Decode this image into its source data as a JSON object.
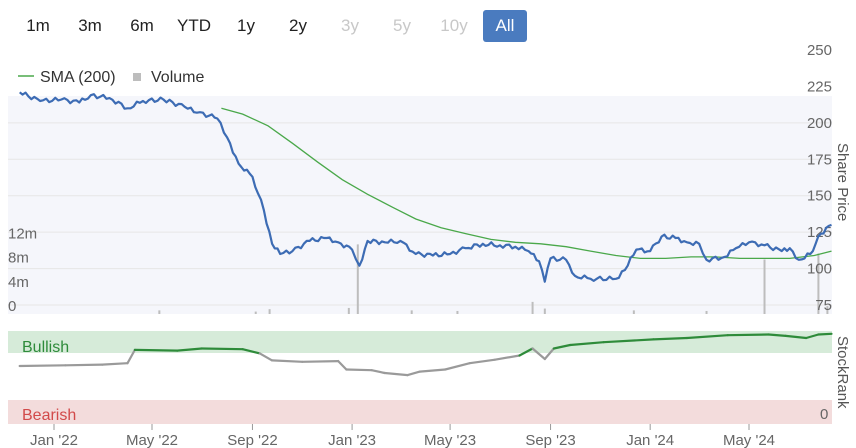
{
  "range_buttons": [
    {
      "label": "1m",
      "state": "enabled"
    },
    {
      "label": "3m",
      "state": "enabled"
    },
    {
      "label": "6m",
      "state": "enabled"
    },
    {
      "label": "YTD",
      "state": "enabled"
    },
    {
      "label": "1y",
      "state": "enabled"
    },
    {
      "label": "2y",
      "state": "enabled"
    },
    {
      "label": "3y",
      "state": "disabled"
    },
    {
      "label": "5y",
      "state": "disabled"
    },
    {
      "label": "10y",
      "state": "disabled"
    },
    {
      "label": "All",
      "state": "active"
    }
  ],
  "colors": {
    "price_line": "#3d6cb4",
    "sma_line": "#4aa84a",
    "volume_bar": "#bdbdbd",
    "plot_bg": "#f5f6fb",
    "bullish_band": "#d6ebd9",
    "bearish_band": "#f3dcdc",
    "bullish_text": "#2e8b3a",
    "bearish_text": "#d24a4a",
    "stockrank_bull": "#2e8b3a",
    "stockrank_bear": "#9a9a9a",
    "active_button": "#4a7bbf"
  },
  "chart_data": {
    "type": "line",
    "legend": [
      {
        "name": "SMA (200)",
        "marker": "line"
      },
      {
        "name": "Volume",
        "marker": "square"
      }
    ],
    "legend_position": "top-left",
    "price_axis": {
      "label": "Share Price",
      "ticks": [
        75,
        100,
        125,
        150,
        175,
        200,
        225,
        250
      ],
      "range": [
        75,
        250
      ]
    },
    "volume_axis": {
      "ticks": [
        "0",
        "4m",
        "8m",
        "12m"
      ],
      "tick_values": [
        0,
        4,
        8,
        12
      ],
      "range": [
        0,
        36
      ]
    },
    "stockrank_axis": {
      "label": "StockRank",
      "ticks": [
        "0"
      ],
      "range": [
        0,
        100
      ]
    },
    "bands": {
      "bullish": "Bullish",
      "bearish": "Bearish"
    },
    "x_ticks": [
      {
        "label": "Jan '22",
        "date": "2022-01-01"
      },
      {
        "label": "May '22",
        "date": "2022-05-01"
      },
      {
        "label": "Sep '22",
        "date": "2022-09-01"
      },
      {
        "label": "Jan '23",
        "date": "2023-01-01"
      },
      {
        "label": "May '23",
        "date": "2023-05-01"
      },
      {
        "label": "Sep '23",
        "date": "2023-09-01"
      },
      {
        "label": "Jan '24",
        "date": "2024-01-01"
      },
      {
        "label": "May '24",
        "date": "2024-05-01"
      }
    ],
    "price": [
      {
        "date": "2021-11-20",
        "value": 221
      },
      {
        "date": "2021-12-15",
        "value": 215
      },
      {
        "date": "2022-01-10",
        "value": 216
      },
      {
        "date": "2022-02-01",
        "value": 214
      },
      {
        "date": "2022-02-15",
        "value": 219
      },
      {
        "date": "2022-03-10",
        "value": 217
      },
      {
        "date": "2022-04-01",
        "value": 210
      },
      {
        "date": "2022-04-20",
        "value": 215
      },
      {
        "date": "2022-05-15",
        "value": 216
      },
      {
        "date": "2022-06-10",
        "value": 211
      },
      {
        "date": "2022-06-25",
        "value": 207
      },
      {
        "date": "2022-07-10",
        "value": 205
      },
      {
        "date": "2022-07-20",
        "value": 203
      },
      {
        "date": "2022-08-01",
        "value": 190
      },
      {
        "date": "2022-08-15",
        "value": 172
      },
      {
        "date": "2022-09-01",
        "value": 163
      },
      {
        "date": "2022-09-15",
        "value": 140
      },
      {
        "date": "2022-09-25",
        "value": 117
      },
      {
        "date": "2022-10-05",
        "value": 110
      },
      {
        "date": "2022-10-20",
        "value": 112
      },
      {
        "date": "2022-11-10",
        "value": 119
      },
      {
        "date": "2022-12-01",
        "value": 121
      },
      {
        "date": "2022-12-15",
        "value": 118
      },
      {
        "date": "2023-01-01",
        "value": 113
      },
      {
        "date": "2023-01-10",
        "value": 102
      },
      {
        "date": "2023-01-20",
        "value": 119
      },
      {
        "date": "2023-02-10",
        "value": 118
      },
      {
        "date": "2023-03-01",
        "value": 119
      },
      {
        "date": "2023-03-20",
        "value": 110
      },
      {
        "date": "2023-04-10",
        "value": 109
      },
      {
        "date": "2023-05-01",
        "value": 110
      },
      {
        "date": "2023-05-20",
        "value": 114
      },
      {
        "date": "2023-06-10",
        "value": 117
      },
      {
        "date": "2023-07-01",
        "value": 116
      },
      {
        "date": "2023-07-20",
        "value": 115
      },
      {
        "date": "2023-08-05",
        "value": 112
      },
      {
        "date": "2023-08-18",
        "value": 105
      },
      {
        "date": "2023-08-25",
        "value": 91
      },
      {
        "date": "2023-09-01",
        "value": 107
      },
      {
        "date": "2023-09-20",
        "value": 106
      },
      {
        "date": "2023-10-01",
        "value": 95
      },
      {
        "date": "2023-10-20",
        "value": 93
      },
      {
        "date": "2023-11-20",
        "value": 93
      },
      {
        "date": "2023-12-01",
        "value": 99
      },
      {
        "date": "2023-12-15",
        "value": 113
      },
      {
        "date": "2024-01-01",
        "value": 112
      },
      {
        "date": "2024-01-15",
        "value": 122
      },
      {
        "date": "2024-02-01",
        "value": 121
      },
      {
        "date": "2024-02-15",
        "value": 118
      },
      {
        "date": "2024-03-01",
        "value": 117
      },
      {
        "date": "2024-03-10",
        "value": 106
      },
      {
        "date": "2024-04-01",
        "value": 108
      },
      {
        "date": "2024-04-15",
        "value": 114
      },
      {
        "date": "2024-05-01",
        "value": 118
      },
      {
        "date": "2024-05-20",
        "value": 116
      },
      {
        "date": "2024-06-10",
        "value": 112
      },
      {
        "date": "2024-06-20",
        "value": 114
      },
      {
        "date": "2024-07-01",
        "value": 106
      },
      {
        "date": "2024-07-15",
        "value": 110
      },
      {
        "date": "2024-07-28",
        "value": 124
      },
      {
        "date": "2024-08-10",
        "value": 130
      }
    ],
    "sma_200": [
      {
        "date": "2022-07-25",
        "value": 210
      },
      {
        "date": "2022-08-20",
        "value": 206
      },
      {
        "date": "2022-09-20",
        "value": 198
      },
      {
        "date": "2022-10-20",
        "value": 186
      },
      {
        "date": "2022-11-20",
        "value": 173
      },
      {
        "date": "2022-12-20",
        "value": 161
      },
      {
        "date": "2023-01-20",
        "value": 151
      },
      {
        "date": "2023-02-20",
        "value": 142
      },
      {
        "date": "2023-03-20",
        "value": 134
      },
      {
        "date": "2023-04-20",
        "value": 128
      },
      {
        "date": "2023-05-20",
        "value": 124
      },
      {
        "date": "2023-06-20",
        "value": 120
      },
      {
        "date": "2023-07-20",
        "value": 118
      },
      {
        "date": "2023-08-20",
        "value": 117
      },
      {
        "date": "2023-09-20",
        "value": 115
      },
      {
        "date": "2023-10-20",
        "value": 112
      },
      {
        "date": "2023-11-20",
        "value": 109
      },
      {
        "date": "2023-12-20",
        "value": 107
      },
      {
        "date": "2024-01-20",
        "value": 107
      },
      {
        "date": "2024-02-20",
        "value": 108
      },
      {
        "date": "2024-03-20",
        "value": 108
      },
      {
        "date": "2024-04-20",
        "value": 107
      },
      {
        "date": "2024-05-20",
        "value": 107
      },
      {
        "date": "2024-06-20",
        "value": 107
      },
      {
        "date": "2024-07-20",
        "value": 109
      },
      {
        "date": "2024-08-10",
        "value": 112
      }
    ],
    "volume_spikes": [
      {
        "date": "2022-05-10",
        "value": 0.6
      },
      {
        "date": "2022-09-05",
        "value": 0.4
      },
      {
        "date": "2022-09-22",
        "value": 0.8
      },
      {
        "date": "2022-12-28",
        "value": 1.0
      },
      {
        "date": "2023-01-08",
        "value": 11.5
      },
      {
        "date": "2023-03-15",
        "value": 0.6
      },
      {
        "date": "2023-05-10",
        "value": 0.5
      },
      {
        "date": "2023-08-10",
        "value": 2.0
      },
      {
        "date": "2023-08-25",
        "value": 0.9
      },
      {
        "date": "2023-12-12",
        "value": 0.6
      },
      {
        "date": "2024-03-10",
        "value": 0.5
      },
      {
        "date": "2024-05-20",
        "value": 9.0
      },
      {
        "date": "2024-07-25",
        "value": 10.0
      },
      {
        "date": "2024-08-05",
        "value": 1.3
      }
    ],
    "stockrank": [
      {
        "date": "2021-11-20",
        "value": 50
      },
      {
        "date": "2022-01-15",
        "value": 51
      },
      {
        "date": "2022-03-01",
        "value": 52
      },
      {
        "date": "2022-04-01",
        "value": 54
      },
      {
        "date": "2022-04-10",
        "value": 73
      },
      {
        "date": "2022-06-01",
        "value": 72
      },
      {
        "date": "2022-07-01",
        "value": 75
      },
      {
        "date": "2022-08-20",
        "value": 74
      },
      {
        "date": "2022-09-10",
        "value": 68
      },
      {
        "date": "2022-09-25",
        "value": 58
      },
      {
        "date": "2022-11-01",
        "value": 56
      },
      {
        "date": "2022-12-15",
        "value": 57
      },
      {
        "date": "2022-12-25",
        "value": 45
      },
      {
        "date": "2023-01-25",
        "value": 44
      },
      {
        "date": "2023-02-10",
        "value": 40
      },
      {
        "date": "2023-03-10",
        "value": 37
      },
      {
        "date": "2023-03-25",
        "value": 42
      },
      {
        "date": "2023-04-25",
        "value": 45
      },
      {
        "date": "2023-05-25",
        "value": 54
      },
      {
        "date": "2023-06-25",
        "value": 59
      },
      {
        "date": "2023-07-25",
        "value": 65
      },
      {
        "date": "2023-08-10",
        "value": 75
      },
      {
        "date": "2023-08-25",
        "value": 60
      },
      {
        "date": "2023-09-05",
        "value": 75
      },
      {
        "date": "2023-09-25",
        "value": 80
      },
      {
        "date": "2023-11-05",
        "value": 84
      },
      {
        "date": "2024-01-05",
        "value": 88
      },
      {
        "date": "2024-02-15",
        "value": 90
      },
      {
        "date": "2024-04-05",
        "value": 94
      },
      {
        "date": "2024-05-25",
        "value": 95
      },
      {
        "date": "2024-06-15",
        "value": 93
      },
      {
        "date": "2024-07-10",
        "value": 90
      },
      {
        "date": "2024-07-25",
        "value": 95
      },
      {
        "date": "2024-08-10",
        "value": 96
      }
    ]
  }
}
